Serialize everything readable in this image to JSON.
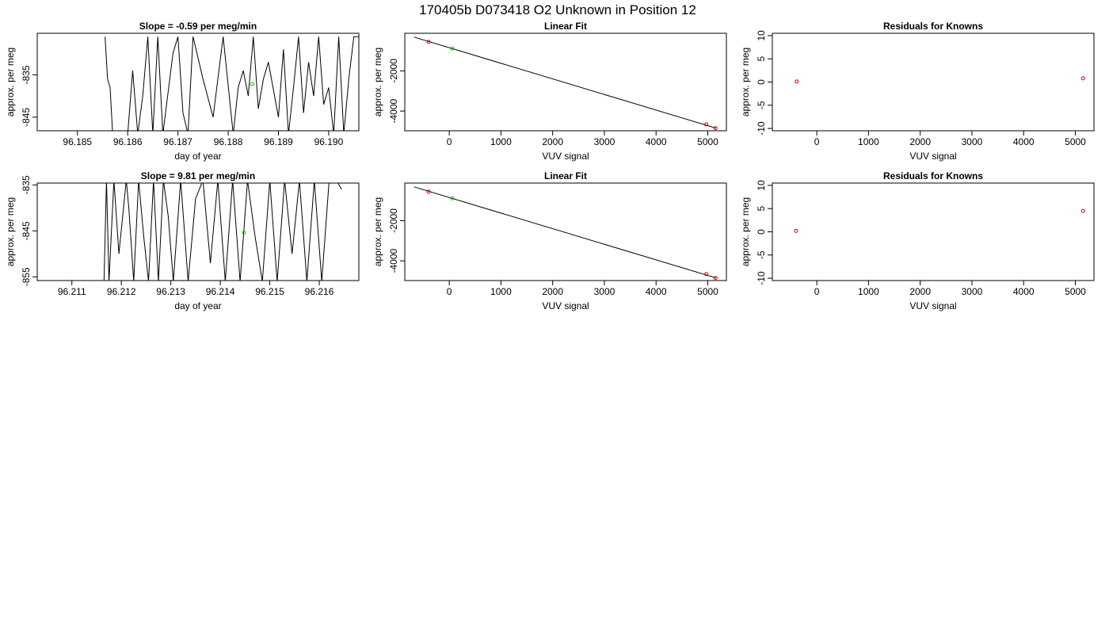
{
  "page_title": "170405b     D073418   O2 Unknown in Position  12",
  "colors": {
    "line": "#000000",
    "known": "#cc0000",
    "unknown": "#00cc00",
    "frame": "#000000"
  },
  "chart_data": [
    {
      "type": "line",
      "title": "Slope =  -0.59  per meg/min",
      "xlabel": "day of year",
      "ylabel": "approx. per meg",
      "xticks": [
        "96.185",
        "96.186",
        "96.187",
        "96.188",
        "96.189",
        "96.190"
      ],
      "xtick_values": [
        96.185,
        96.186,
        96.187,
        96.188,
        96.189,
        96.19
      ],
      "yticks": [
        "-835",
        "-845"
      ],
      "ytick_values": [
        -835,
        -845
      ],
      "xlim": [
        96.1842,
        96.1906
      ],
      "ylim": [
        -848.2,
        -825.2
      ],
      "series": [
        {
          "x": [
            96.18555,
            96.1856,
            96.18565,
            96.1857,
            96.186,
            96.1861,
            96.1862,
            96.1863,
            96.1864,
            96.1865,
            96.1866,
            96.1867,
            96.1869,
            96.187,
            96.1871,
            96.1872,
            96.1873,
            96.1875,
            96.1877,
            96.1879,
            96.1881,
            96.1882,
            96.1883,
            96.1884,
            96.1885,
            96.1886,
            96.1887,
            96.1888,
            96.189,
            96.1891,
            96.1892,
            96.1893,
            96.1894,
            96.1895,
            96.1896,
            96.1897,
            96.1898,
            96.1899,
            96.19,
            96.1901,
            96.1902,
            96.1903,
            96.1904,
            96.1905,
            96.1906
          ],
          "y": [
            -826,
            -836,
            -838,
            -849,
            -849,
            -834,
            -849,
            -840,
            -826,
            -849,
            -826,
            -849,
            -830,
            -826,
            -844,
            -849,
            -826,
            -836,
            -845,
            -826,
            -849,
            -838,
            -834,
            -840,
            -826,
            -843,
            -836,
            -832,
            -845,
            -829,
            -849,
            -838,
            -826,
            -844,
            -832,
            -840,
            -826,
            -842,
            -838,
            -849,
            -826,
            -849,
            -836,
            -826,
            -826
          ]
        }
      ],
      "unknown_points": [
        {
          "x": 96.18848,
          "y": -837.2
        }
      ]
    },
    {
      "type": "scatter",
      "title": "Linear Fit",
      "xlabel": "VUV signal",
      "ylabel": "approx. per meg",
      "xticks": [
        "0",
        "1000",
        "2000",
        "3000",
        "4000",
        "5000"
      ],
      "xtick_values": [
        0,
        1000,
        2000,
        3000,
        4000,
        5000
      ],
      "yticks": [
        "-2000",
        "-4000"
      ],
      "ytick_values": [
        -2000,
        -4000
      ],
      "xlim": [
        -860,
        5360
      ],
      "ylim": [
        -4980,
        -130
      ],
      "fit_line": {
        "x": [
          -680,
          5160
        ],
        "y": [
          -320,
          -4850
        ]
      },
      "known_points": [
        {
          "x": -400,
          "y": -560
        },
        {
          "x": 4970,
          "y": -4660
        },
        {
          "x": 5150,
          "y": -4850
        }
      ],
      "unknown_points": [
        {
          "x": 60,
          "y": -890
        }
      ]
    },
    {
      "type": "scatter",
      "title": "Residuals for Knowns",
      "xlabel": "VUV signal",
      "ylabel": "approx. per meg",
      "xticks": [
        "0",
        "1000",
        "2000",
        "3000",
        "4000",
        "5000"
      ],
      "xtick_values": [
        0,
        1000,
        2000,
        3000,
        4000,
        5000
      ],
      "yticks": [
        "10",
        "5",
        "0",
        "-5",
        "-10"
      ],
      "ytick_values": [
        10,
        5,
        0,
        -5,
        -10
      ],
      "xlim": [
        -860,
        5360
      ],
      "ylim": [
        -10.5,
        10.5
      ],
      "known_points": [
        {
          "x": -390,
          "y": 0.1
        },
        {
          "x": 5150,
          "y": 0.8
        }
      ]
    },
    {
      "type": "line",
      "title": "Slope =  9.81  per meg/min",
      "xlabel": "day of year",
      "ylabel": "approx. per meg",
      "xticks": [
        "96.211",
        "96.212",
        "96.213",
        "96.214",
        "96.215",
        "96.216"
      ],
      "xtick_values": [
        96.211,
        96.212,
        96.213,
        96.214,
        96.215,
        96.216
      ],
      "yticks": [
        "-835",
        "-845",
        "-855"
      ],
      "ytick_values": [
        -835,
        -845,
        -855
      ],
      "xlim": [
        96.2103,
        96.2168
      ],
      "ylim": [
        -855.8,
        -834.6
      ],
      "series": [
        {
          "x": [
            96.21165,
            96.2117,
            96.21175,
            96.21185,
            96.21195,
            96.2121,
            96.21215,
            96.21225,
            96.21235,
            96.21245,
            96.21255,
            96.21265,
            96.21275,
            96.21285,
            96.21295,
            96.21305,
            96.2132,
            96.21335,
            96.2135,
            96.21365,
            96.2138,
            96.21395,
            96.2141,
            96.21425,
            96.2144,
            96.21455,
            96.2147,
            96.21485,
            96.215,
            96.21515,
            96.2153,
            96.21545,
            96.2156,
            96.21575,
            96.2159,
            96.21605,
            96.2162,
            96.21635,
            96.21645
          ],
          "y": [
            -856,
            -834,
            -856,
            -834,
            -850,
            -834,
            -840,
            -856,
            -834,
            -846,
            -856,
            -834,
            -856,
            -834,
            -842,
            -856,
            -834,
            -856,
            -838,
            -834,
            -852,
            -834,
            -856,
            -834,
            -856,
            -834,
            -846,
            -856,
            -834,
            -856,
            -834,
            -850,
            -834,
            -856,
            -834,
            -856,
            -834,
            -834,
            -836
          ]
        }
      ],
      "unknown_points": [
        {
          "x": 96.21448,
          "y": -845.4
        }
      ]
    },
    {
      "type": "scatter",
      "title": "Linear Fit",
      "xlabel": "VUV signal",
      "ylabel": "approx. per meg",
      "xticks": [
        "0",
        "1000",
        "2000",
        "3000",
        "4000",
        "5000"
      ],
      "xtick_values": [
        0,
        1000,
        2000,
        3000,
        4000,
        5000
      ],
      "yticks": [
        "-2000",
        "-4000"
      ],
      "ytick_values": [
        -2000,
        -4000
      ],
      "xlim": [
        -860,
        5360
      ],
      "ylim": [
        -4980,
        -130
      ],
      "fit_line": {
        "x": [
          -680,
          5160
        ],
        "y": [
          -320,
          -4850
        ]
      },
      "known_points": [
        {
          "x": -400,
          "y": -560
        },
        {
          "x": 4970,
          "y": -4660
        },
        {
          "x": 5150,
          "y": -4850
        }
      ],
      "unknown_points": [
        {
          "x": 60,
          "y": -890
        }
      ]
    },
    {
      "type": "scatter",
      "title": "Residuals for Knowns",
      "xlabel": "VUV signal",
      "ylabel": "approx. per meg",
      "xticks": [
        "0",
        "1000",
        "2000",
        "3000",
        "4000",
        "5000"
      ],
      "xtick_values": [
        0,
        1000,
        2000,
        3000,
        4000,
        5000
      ],
      "yticks": [
        "10",
        "5",
        "0",
        "-5",
        "-10"
      ],
      "ytick_values": [
        10,
        5,
        0,
        -5,
        -10
      ],
      "xlim": [
        -860,
        5360
      ],
      "ylim": [
        -10.5,
        10.5
      ],
      "known_points": [
        {
          "x": -400,
          "y": 0.2
        },
        {
          "x": 5150,
          "y": 4.5
        }
      ]
    }
  ]
}
